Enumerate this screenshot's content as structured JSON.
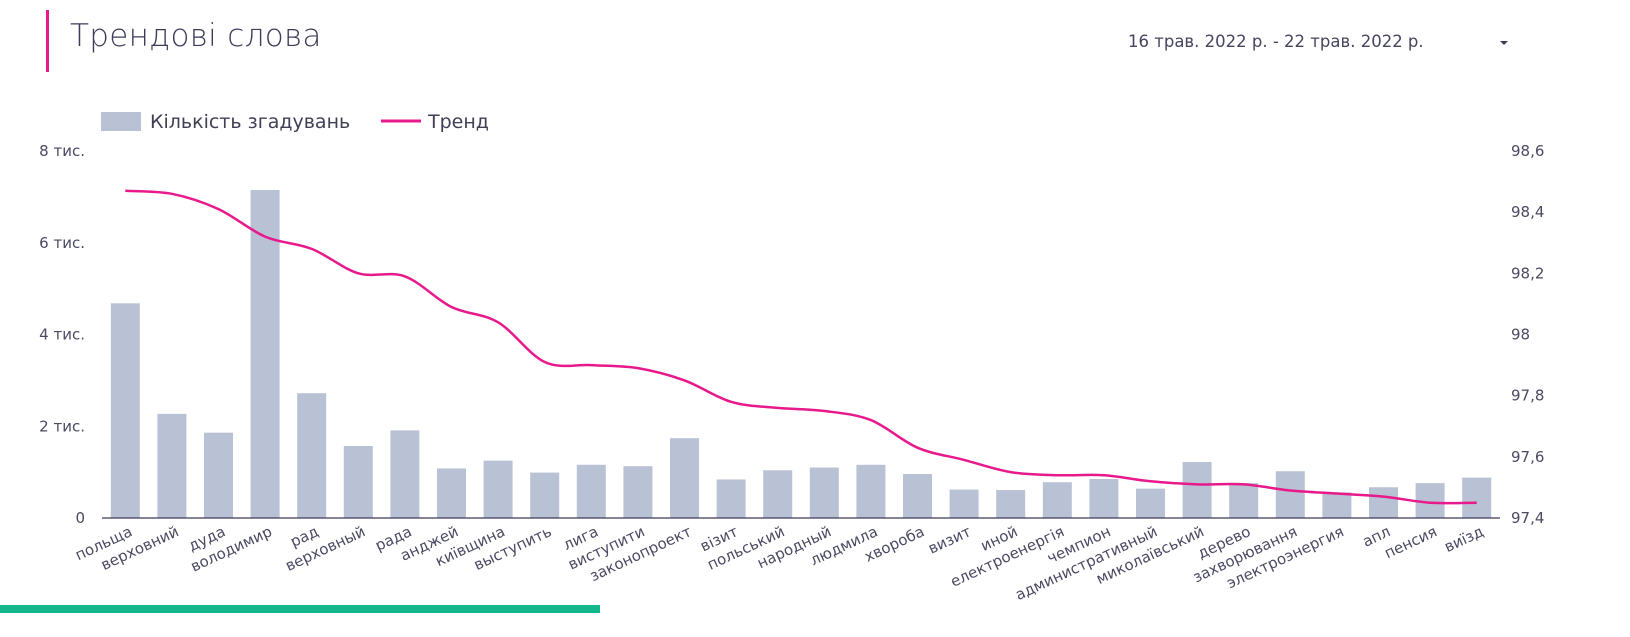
{
  "header": {
    "title": "Трендові слова",
    "date_range": "16 трав. 2022 р. - 22 трав. 2022 р."
  },
  "colors": {
    "accent": "#e8198b",
    "bar": "#b9c1d4",
    "trend": "#e8198b",
    "strip": "#12b88c",
    "axis": "#3c3c58"
  },
  "chart_data": {
    "type": "bar",
    "legend_position": "top-left",
    "grid": false,
    "categories": [
      "польща",
      "верховний",
      "дуда",
      "володимир",
      "рад",
      "верховный",
      "рада",
      "анджей",
      "київщина",
      "выступить",
      "лига",
      "виступити",
      "законопроект",
      "візит",
      "польський",
      "народный",
      "людмила",
      "хвороба",
      "визит",
      "иной",
      "електроенергія",
      "чемпион",
      "административный",
      "миколаївський",
      "дерево",
      "захворювання",
      "электроэнергия",
      "апл",
      "пенсия",
      "виїзд"
    ],
    "series": [
      {
        "name": "Кількість згадувань",
        "type": "bar",
        "axis": "left",
        "values": [
          4680,
          2270,
          1860,
          7150,
          2720,
          1570,
          1910,
          1080,
          1250,
          990,
          1160,
          1130,
          1740,
          840,
          1040,
          1100,
          1160,
          960,
          620,
          610,
          780,
          850,
          640,
          1220,
          760,
          1020,
          560,
          670,
          760,
          880
        ]
      },
      {
        "name": "Тренд",
        "type": "line",
        "axis": "right",
        "values": [
          98.47,
          98.46,
          98.41,
          98.32,
          98.28,
          98.2,
          98.19,
          98.09,
          98.04,
          97.91,
          97.9,
          97.89,
          97.85,
          97.78,
          97.76,
          97.75,
          97.72,
          97.63,
          97.59,
          97.55,
          97.54,
          97.54,
          97.52,
          97.51,
          97.51,
          97.49,
          97.48,
          97.47,
          97.45,
          97.45
        ]
      }
    ],
    "y_left": {
      "ylim": [
        0,
        8000
      ],
      "ticks": [
        0,
        2000,
        4000,
        6000,
        8000
      ],
      "tick_labels": [
        "0",
        "2 тис.",
        "4 тис.",
        "6 тис.",
        "8 тис."
      ]
    },
    "y_right": {
      "ylim": [
        97.4,
        98.6
      ],
      "ticks": [
        97.4,
        97.6,
        97.8,
        98.0,
        98.2,
        98.4,
        98.6
      ],
      "tick_labels": [
        "97,4",
        "97,6",
        "97,8",
        "98",
        "98,2",
        "98,4",
        "98,6"
      ]
    }
  }
}
